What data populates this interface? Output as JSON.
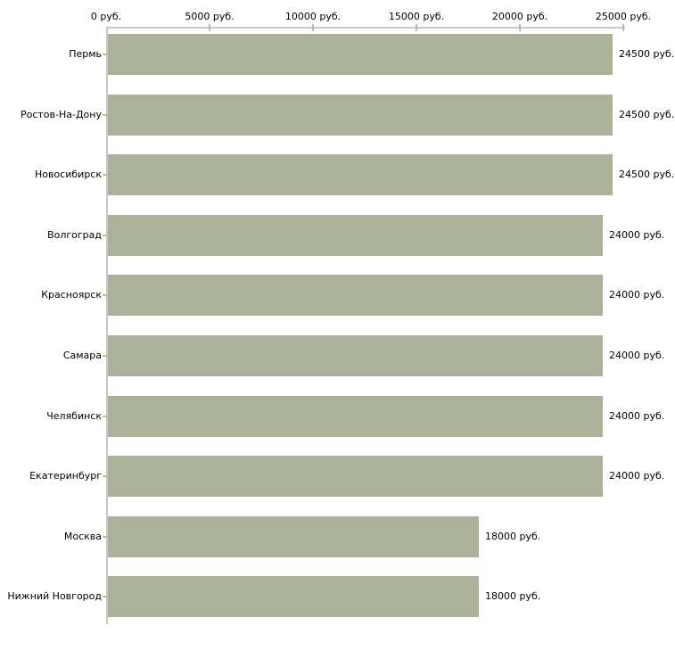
{
  "chart_data": {
    "type": "bar",
    "orientation": "horizontal",
    "title": "",
    "xlabel": "",
    "ylabel": "",
    "unit": "руб.",
    "categories": [
      "Пермь",
      "Ростов-На-Дону",
      "Новосибирск",
      "Волгоград",
      "Красноярск",
      "Самара",
      "Челябинск",
      "Екатеринбург",
      "Москва",
      "Нижний Новгород"
    ],
    "values": [
      24500,
      24500,
      24500,
      24000,
      24000,
      24000,
      24000,
      24000,
      18000,
      18000
    ],
    "value_labels": [
      "24500 руб.",
      "24500 руб.",
      "24500 руб.",
      "24000 руб.",
      "24000 руб.",
      "24000 руб.",
      "24000 руб.",
      "24000 руб.",
      "18000 руб.",
      "18000 руб."
    ],
    "x_ticks": [
      0,
      5000,
      10000,
      15000,
      20000,
      25000
    ],
    "x_tick_labels": [
      "0 руб.",
      "5000 руб.",
      "10000 руб.",
      "15000 руб.",
      "20000 руб.",
      "25000 руб."
    ],
    "xlim": [
      0,
      25000
    ],
    "legend_position": "none",
    "grid": "off",
    "colors": {
      "bar": "#abb299",
      "tick": "#bdbd96",
      "axis": "#c7c7c7",
      "text": "#000000",
      "background": "#ffffff"
    }
  }
}
